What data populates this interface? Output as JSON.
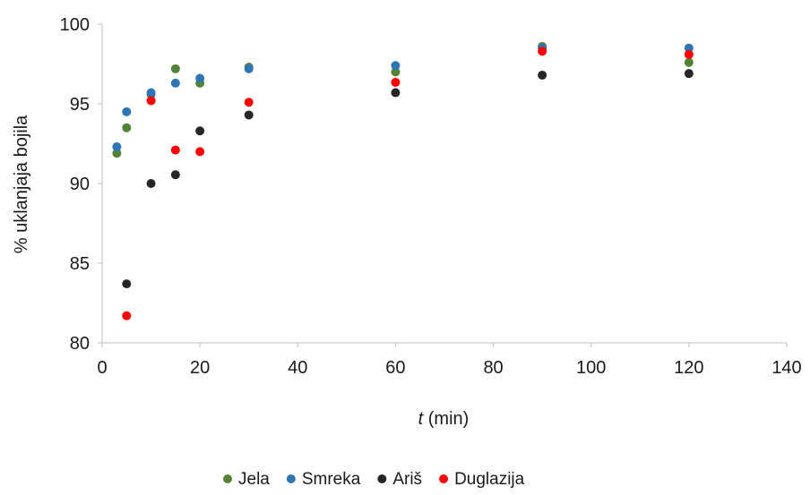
{
  "chart_data": {
    "type": "scatter",
    "xlabel_italic": "t",
    "xlabel_rest": " (min)",
    "ylabel": "% uklanjaja bojila",
    "xlim": [
      0,
      140
    ],
    "ylim": [
      80,
      100
    ],
    "xticks": [
      0,
      20,
      40,
      60,
      80,
      100,
      120,
      140
    ],
    "yticks": [
      80,
      85,
      90,
      95,
      100
    ],
    "grid": false,
    "legend_position": "bottom",
    "series": [
      {
        "name": "Jela",
        "color": "#548235",
        "points": [
          [
            3,
            91.9
          ],
          [
            5,
            93.5
          ],
          [
            10,
            95.6
          ],
          [
            15,
            97.2
          ],
          [
            20,
            96.3
          ],
          [
            30,
            97.3
          ],
          [
            60,
            97.0
          ],
          [
            90,
            98.6
          ],
          [
            120,
            97.6
          ]
        ]
      },
      {
        "name": "Smreka",
        "color": "#2E75B6",
        "points": [
          [
            3,
            92.3
          ],
          [
            5,
            94.5
          ],
          [
            10,
            95.7
          ],
          [
            15,
            96.3
          ],
          [
            20,
            96.6
          ],
          [
            30,
            97.2
          ],
          [
            60,
            97.4
          ],
          [
            90,
            98.5
          ],
          [
            120,
            98.5
          ]
        ]
      },
      {
        "name": "Ariš",
        "color": "#262626",
        "points": [
          [
            5,
            83.7
          ],
          [
            10,
            90.0
          ],
          [
            15,
            90.55
          ],
          [
            20,
            93.3
          ],
          [
            30,
            94.3
          ],
          [
            60,
            95.7
          ],
          [
            90,
            96.8
          ],
          [
            120,
            96.9
          ]
        ]
      },
      {
        "name": "Duglazija",
        "color": "#FF0000",
        "points": [
          [
            5,
            81.7
          ],
          [
            10,
            95.2
          ],
          [
            15,
            92.1
          ],
          [
            20,
            92.0
          ],
          [
            30,
            95.1
          ],
          [
            60,
            96.35
          ],
          [
            90,
            98.3
          ],
          [
            120,
            98.1
          ]
        ]
      }
    ]
  }
}
